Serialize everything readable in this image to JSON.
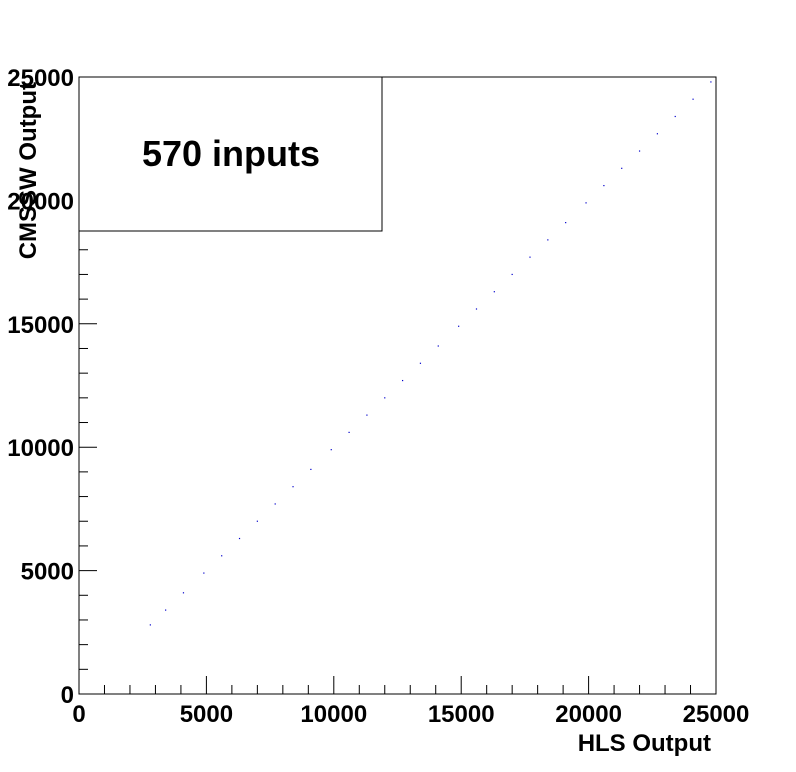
{
  "chart_data": {
    "type": "scatter",
    "title": "",
    "xlabel": "HLS Output",
    "ylabel": "CMSSW Output",
    "xlim": [
      0,
      25000
    ],
    "ylim": [
      0,
      25000
    ],
    "x_ticks": [
      0,
      5000,
      10000,
      15000,
      20000,
      25000
    ],
    "y_ticks": [
      0,
      5000,
      10000,
      15000,
      20000,
      25000
    ],
    "x_tick_labels": [
      "0",
      "5000",
      "10000",
      "15000",
      "20000",
      "25000"
    ],
    "y_tick_labels": [
      "0",
      "5000",
      "10000",
      "15000",
      "20000",
      "25000"
    ],
    "annotation": "570 inputs",
    "grid": false,
    "marker_color": "#0000cc",
    "series": [
      {
        "x_range": [
          2800,
          24800
        ],
        "relation": "y = x",
        "points": [
          [
            2800,
            2800
          ],
          [
            3400,
            3400
          ],
          [
            4100,
            4100
          ],
          [
            4900,
            4900
          ],
          [
            5600,
            5600
          ],
          [
            6300,
            6300
          ],
          [
            7000,
            7000
          ],
          [
            7700,
            7700
          ],
          [
            8400,
            8400
          ],
          [
            9100,
            9100
          ],
          [
            9900,
            9900
          ],
          [
            10600,
            10600
          ],
          [
            11300,
            11300
          ],
          [
            12000,
            12000
          ],
          [
            12700,
            12700
          ],
          [
            13400,
            13400
          ],
          [
            14100,
            14100
          ],
          [
            14900,
            14900
          ],
          [
            15600,
            15600
          ],
          [
            16300,
            16300
          ],
          [
            17000,
            17000
          ],
          [
            17700,
            17700
          ],
          [
            18400,
            18400
          ],
          [
            19100,
            19100
          ],
          [
            19900,
            19900
          ],
          [
            20600,
            20600
          ],
          [
            21300,
            21300
          ],
          [
            22000,
            22000
          ],
          [
            22700,
            22700
          ],
          [
            23400,
            23400
          ],
          [
            24100,
            24100
          ],
          [
            24800,
            24800
          ]
        ]
      }
    ]
  }
}
